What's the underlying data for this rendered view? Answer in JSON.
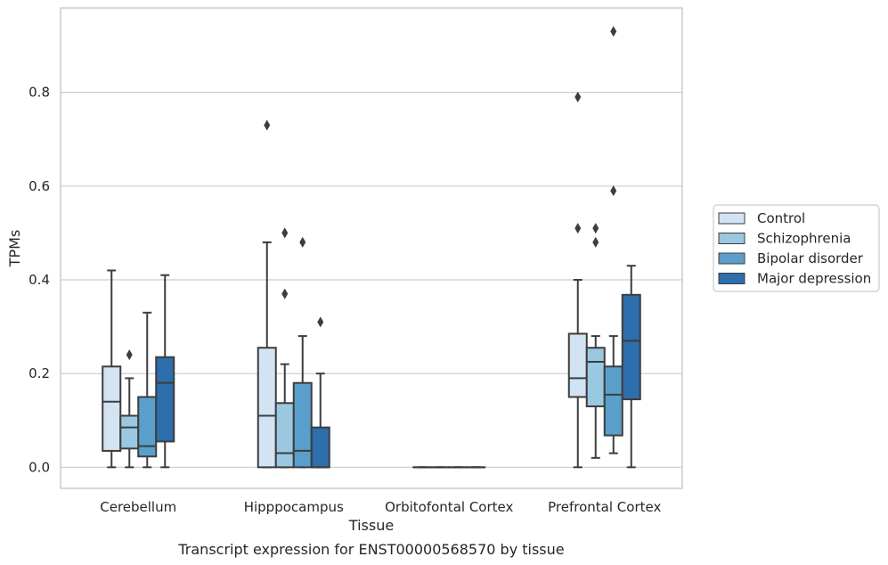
{
  "chart_data": {
    "type": "boxplot",
    "title": "",
    "caption": "Transcript expression for ENST00000568570 by tissue",
    "xlabel": "Tissue",
    "ylabel": "TPMs",
    "ylim": [
      -0.045,
      0.98
    ],
    "yticks": [
      0.0,
      0.2,
      0.4,
      0.6,
      0.8
    ],
    "ytick_labels": [
      "0.0",
      "0.2",
      "0.4",
      "0.6",
      "0.8"
    ],
    "grid": "horizontal",
    "legend_position": "right",
    "categories": [
      "Cerebellum",
      "Hipppocampus",
      "Orbitofontal Cortex",
      "Prefrontal Cortex"
    ],
    "series": [
      {
        "name": "Control",
        "color": "#d2e3f3",
        "boxes": [
          {
            "whislo": 0.0,
            "q1": 0.035,
            "med": 0.14,
            "q3": 0.215,
            "whishi": 0.42,
            "fliers": []
          },
          {
            "whislo": 0.0,
            "q1": 0.0,
            "med": 0.11,
            "q3": 0.255,
            "whishi": 0.48,
            "fliers": [
              0.73
            ]
          },
          {
            "whislo": 0.0,
            "q1": 0.0,
            "med": 0.0,
            "q3": 0.0,
            "whishi": 0.0,
            "fliers": []
          },
          {
            "whislo": 0.0,
            "q1": 0.15,
            "med": 0.19,
            "q3": 0.285,
            "whishi": 0.4,
            "fliers": [
              0.51,
              0.79
            ]
          }
        ]
      },
      {
        "name": "Schizophrenia",
        "color": "#9ac8e0",
        "boxes": [
          {
            "whislo": 0.0,
            "q1": 0.04,
            "med": 0.085,
            "q3": 0.11,
            "whishi": 0.19,
            "fliers": [
              0.24
            ]
          },
          {
            "whislo": 0.0,
            "q1": 0.0,
            "med": 0.03,
            "q3": 0.137,
            "whishi": 0.22,
            "fliers": [
              0.37,
              0.5
            ]
          },
          {
            "whislo": 0.0,
            "q1": 0.0,
            "med": 0.0,
            "q3": 0.0,
            "whishi": 0.0,
            "fliers": []
          },
          {
            "whislo": 0.02,
            "q1": 0.13,
            "med": 0.225,
            "q3": 0.255,
            "whishi": 0.28,
            "fliers": [
              0.48,
              0.51
            ]
          }
        ]
      },
      {
        "name": "Bipolar disorder",
        "color": "#5a9fcb",
        "boxes": [
          {
            "whislo": 0.0,
            "q1": 0.023,
            "med": 0.045,
            "q3": 0.15,
            "whishi": 0.33,
            "fliers": []
          },
          {
            "whislo": 0.0,
            "q1": 0.0,
            "med": 0.035,
            "q3": 0.18,
            "whishi": 0.28,
            "fliers": [
              0.48
            ]
          },
          {
            "whislo": 0.0,
            "q1": 0.0,
            "med": 0.0,
            "q3": 0.0,
            "whishi": 0.0,
            "fliers": []
          },
          {
            "whislo": 0.03,
            "q1": 0.068,
            "med": 0.155,
            "q3": 0.215,
            "whishi": 0.28,
            "fliers": [
              0.59,
              0.93
            ]
          }
        ]
      },
      {
        "name": "Major depression",
        "color": "#2d6ead",
        "boxes": [
          {
            "whislo": 0.0,
            "q1": 0.055,
            "med": 0.18,
            "q3": 0.235,
            "whishi": 0.41,
            "fliers": []
          },
          {
            "whislo": 0.0,
            "q1": 0.0,
            "med": 0.0,
            "q3": 0.085,
            "whishi": 0.2,
            "fliers": [
              0.31
            ]
          },
          {
            "whislo": 0.0,
            "q1": 0.0,
            "med": 0.0,
            "q3": 0.0,
            "whishi": 0.0,
            "fliers": []
          },
          {
            "whislo": 0.0,
            "q1": 0.145,
            "med": 0.27,
            "q3": 0.368,
            "whishi": 0.43,
            "fliers": []
          }
        ]
      }
    ]
  }
}
